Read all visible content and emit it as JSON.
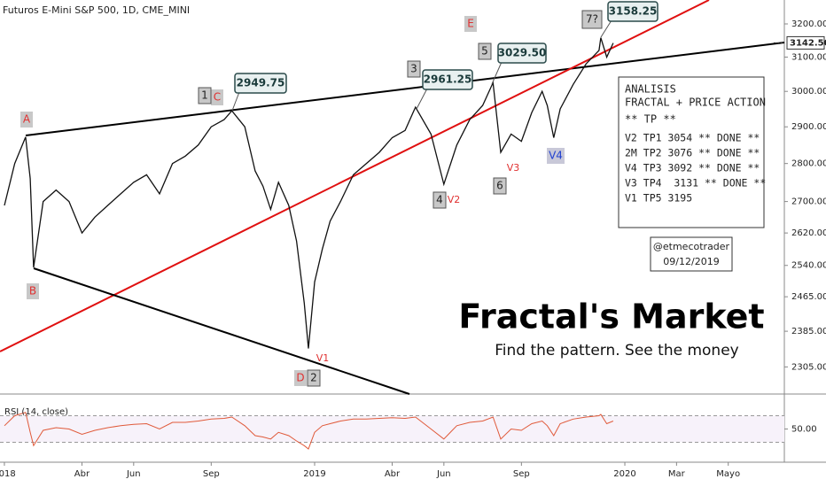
{
  "chart_data": {
    "type": "line",
    "title": "Futuros E-Mini S&P 500, 1D, CME_MINI",
    "color": "#111111",
    "log_scale": true,
    "x": [
      0,
      0.4,
      0.82,
      1.0,
      1.13,
      1.5,
      2.0,
      2.5,
      3.0,
      3.5,
      4.0,
      4.5,
      5.0,
      5.5,
      6.0,
      6.5,
      7.0,
      7.5,
      8.0,
      8.5,
      8.8,
      9.3,
      9.7,
      10.0,
      10.3,
      10.6,
      11.0,
      11.3,
      11.6,
      11.76,
      12.0,
      12.3,
      12.6,
      13.0,
      13.5,
      14.0,
      14.5,
      15.0,
      15.5,
      15.9,
      16.5,
      17.0,
      17.5,
      18.0,
      18.5,
      18.9,
      19.2,
      19.6,
      20.0,
      20.4,
      20.8,
      21.0,
      21.25,
      21.5,
      22.0,
      22.5,
      23.0,
      23.07,
      23.3,
      23.55
    ],
    "values": [
      2690,
      2800,
      2872,
      2760,
      2535,
      2700,
      2730,
      2700,
      2620,
      2660,
      2690,
      2720,
      2750,
      2770,
      2720,
      2800,
      2820,
      2850,
      2900,
      2920,
      2945,
      2900,
      2780,
      2740,
      2680,
      2750,
      2690,
      2600,
      2450,
      2346,
      2500,
      2580,
      2650,
      2700,
      2770,
      2800,
      2830,
      2870,
      2890,
      2955,
      2880,
      2745,
      2850,
      2920,
      2960,
      3025,
      2830,
      2880,
      2860,
      2940,
      3000,
      2960,
      2870,
      2950,
      3020,
      3080,
      3120,
      3158,
      3100,
      3142
    ],
    "xlim": [
      -0.17,
      30.17
    ],
    "xticks": [
      {
        "value": 0,
        "label": "2018"
      },
      {
        "value": 3,
        "label": "Abr"
      },
      {
        "value": 5,
        "label": "Jun"
      },
      {
        "value": 8,
        "label": "Sep"
      },
      {
        "value": 12,
        "label": "2019"
      },
      {
        "value": 15,
        "label": "Abr"
      },
      {
        "value": 17,
        "label": "Jun"
      },
      {
        "value": 20,
        "label": "Sep"
      },
      {
        "value": 24,
        "label": "2020"
      },
      {
        "value": 26,
        "label": "Mar"
      },
      {
        "value": 28,
        "label": "Mayo"
      }
    ],
    "ylim": [
      2246,
      3274
    ],
    "yticks": [
      {
        "value": 3200,
        "label": "3200.00"
      },
      {
        "value": 3100,
        "label": "3100.00"
      },
      {
        "value": 3000,
        "label": "3000.00"
      },
      {
        "value": 2900,
        "label": "2900.00"
      },
      {
        "value": 2800,
        "label": "2800.00"
      },
      {
        "value": 2700,
        "label": "2700.00"
      },
      {
        "value": 2620,
        "label": "2620.00"
      },
      {
        "value": 2540,
        "label": "2540.00"
      },
      {
        "value": 2465,
        "label": "2465.00"
      },
      {
        "value": 2385,
        "label": "2385.00"
      },
      {
        "value": 2305,
        "label": "2305.00"
      }
    ],
    "last_price": {
      "value": 3142.5,
      "label": "3142.50"
    },
    "rsi": {
      "label": "RSI (14, close)",
      "color": "#e05a3a",
      "values": [
        55,
        70,
        75,
        45,
        25,
        48,
        52,
        50,
        42,
        48,
        52,
        55,
        57,
        58,
        50,
        60,
        60,
        62,
        65,
        66,
        68,
        55,
        40,
        38,
        35,
        45,
        40,
        32,
        25,
        20,
        45,
        55,
        58,
        62,
        65,
        65,
        66,
        67,
        66,
        68,
        50,
        35,
        55,
        60,
        62,
        68,
        35,
        50,
        48,
        58,
        62,
        55,
        40,
        58,
        65,
        68,
        70,
        72,
        58,
        62
      ],
      "ylim": [
        0,
        100
      ],
      "yticks": [
        {
          "value": 50,
          "label": "50.00"
        }
      ],
      "bands": [
        30,
        70
      ]
    },
    "annotations": [
      "A",
      "B",
      "C",
      "D",
      "E",
      "1",
      "2",
      "3",
      "4",
      "5",
      "6",
      "7?",
      "V1",
      "V2",
      "V3",
      "V4",
      "2949.75",
      "2961.25",
      "3029.50",
      "3158.25",
      "ANALISIS",
      "FRACTAL + PRICE ACTION",
      "** TP **",
      "V2 TP1 3054 ** DONE **",
      "2M TP2 3076 ** DONE **",
      "V4 TP3 3092 ** DONE **",
      "V3 TP4  3131 ** DONE **",
      "V1 TP5 3195",
      "@etmecotrader",
      "09/12/2019",
      "Fractal's Market",
      "Find the pattern. See the money"
    ]
  }
}
